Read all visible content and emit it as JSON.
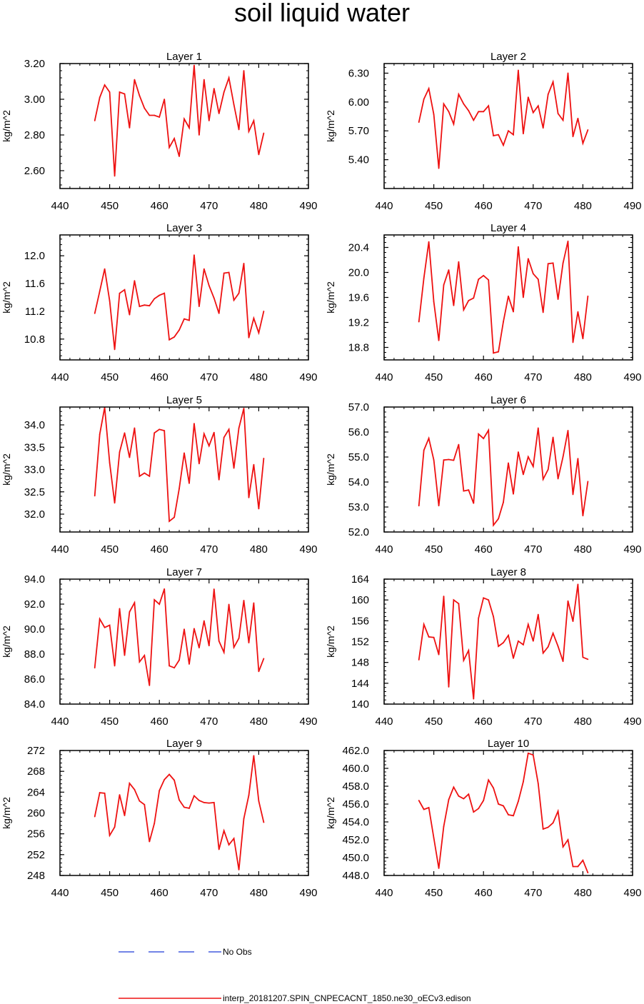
{
  "title": "soil liquid water",
  "chart_data": [
    {
      "type": "line",
      "title": "Layer 1",
      "ylabel": "kg/m^2",
      "xlim": [
        440,
        490
      ],
      "ylim": [
        2.5,
        3.2
      ],
      "xticks": [
        "440",
        "450",
        "460",
        "470",
        "480",
        "490"
      ],
      "yticks": [
        "2.60",
        "2.80",
        "3.00",
        "3.20"
      ],
      "x": [
        447,
        448,
        449,
        450,
        451,
        452,
        453,
        454,
        455,
        456,
        457,
        458,
        459,
        460,
        461,
        462,
        463,
        464,
        465,
        466,
        467,
        468,
        469,
        470,
        471,
        472,
        473,
        474,
        475,
        476,
        477,
        478,
        479,
        480,
        481
      ],
      "y": [
        2.88,
        3.01,
        3.08,
        3.04,
        2.57,
        3.04,
        3.03,
        2.84,
        3.11,
        3.02,
        2.95,
        2.91,
        2.91,
        2.9,
        3.0,
        2.73,
        2.78,
        2.68,
        2.89,
        2.84,
        3.19,
        2.8,
        3.11,
        2.88,
        3.06,
        2.92,
        3.04,
        3.12,
        2.97,
        2.83,
        3.16,
        2.82,
        2.88,
        2.69,
        2.81
      ]
    },
    {
      "type": "line",
      "title": "Layer 2",
      "ylabel": "kg/m^2",
      "xlim": [
        440,
        490
      ],
      "ylim": [
        5.1,
        6.4
      ],
      "xticks": [
        "440",
        "450",
        "460",
        "470",
        "480",
        "490"
      ],
      "yticks": [
        "5.40",
        "5.70",
        "6.00",
        "6.30"
      ],
      "x": [
        447,
        448,
        449,
        450,
        451,
        452,
        453,
        454,
        455,
        456,
        457,
        458,
        459,
        460,
        461,
        462,
        463,
        464,
        465,
        466,
        467,
        468,
        469,
        470,
        471,
        472,
        473,
        474,
        475,
        476,
        477,
        478,
        479,
        480,
        481
      ],
      "y": [
        5.79,
        6.03,
        6.14,
        5.87,
        5.31,
        5.98,
        5.9,
        5.77,
        6.08,
        5.98,
        5.91,
        5.81,
        5.9,
        5.9,
        5.96,
        5.65,
        5.66,
        5.55,
        5.7,
        5.66,
        6.33,
        5.67,
        6.05,
        5.89,
        5.96,
        5.73,
        6.08,
        6.21,
        5.88,
        5.81,
        6.3,
        5.64,
        5.83,
        5.57,
        5.71
      ]
    },
    {
      "type": "line",
      "title": "Layer 3",
      "ylabel": "kg/m^2",
      "xlim": [
        440,
        490
      ],
      "ylim": [
        10.5,
        12.3
      ],
      "xticks": [
        "440",
        "450",
        "460",
        "470",
        "480",
        "490"
      ],
      "yticks": [
        "10.8",
        "11.2",
        "11.6",
        "12.0"
      ],
      "x": [
        447,
        448,
        449,
        450,
        451,
        452,
        453,
        454,
        455,
        456,
        457,
        458,
        459,
        460,
        461,
        462,
        463,
        464,
        465,
        466,
        467,
        468,
        469,
        470,
        471,
        472,
        473,
        474,
        475,
        476,
        477,
        478,
        479,
        480,
        481
      ],
      "y": [
        11.17,
        11.49,
        11.81,
        11.35,
        10.65,
        11.46,
        11.51,
        11.15,
        11.64,
        11.27,
        11.29,
        11.28,
        11.38,
        11.43,
        11.46,
        10.79,
        10.83,
        10.93,
        11.09,
        11.07,
        12.01,
        11.27,
        11.81,
        11.57,
        11.39,
        11.17,
        11.75,
        11.76,
        11.36,
        11.46,
        11.89,
        10.82,
        11.1,
        10.89,
        11.2
      ]
    },
    {
      "type": "line",
      "title": "Layer 4",
      "ylabel": "kg/m^2",
      "xlim": [
        440,
        490
      ],
      "ylim": [
        18.6,
        20.6
      ],
      "xticks": [
        "440",
        "450",
        "460",
        "470",
        "480",
        "490"
      ],
      "yticks": [
        "18.8",
        "19.2",
        "19.6",
        "20.0",
        "20.4"
      ],
      "x": [
        447,
        448,
        449,
        450,
        451,
        452,
        453,
        454,
        455,
        456,
        457,
        458,
        459,
        460,
        461,
        462,
        463,
        464,
        465,
        466,
        467,
        468,
        469,
        470,
        471,
        472,
        473,
        474,
        475,
        476,
        477,
        478,
        479,
        480,
        481
      ],
      "y": [
        19.21,
        19.91,
        20.49,
        19.53,
        18.91,
        19.8,
        20.04,
        19.47,
        20.17,
        19.4,
        19.55,
        19.59,
        19.89,
        19.95,
        19.88,
        18.71,
        18.73,
        19.21,
        19.62,
        19.37,
        20.41,
        19.6,
        20.22,
        19.98,
        19.89,
        19.36,
        20.14,
        20.15,
        19.57,
        20.15,
        20.5,
        18.88,
        19.37,
        18.94,
        19.62
      ]
    },
    {
      "type": "line",
      "title": "Layer 5",
      "ylabel": "kg/m^2",
      "xlim": [
        440,
        490
      ],
      "ylim": [
        31.6,
        34.4
      ],
      "xticks": [
        "440",
        "450",
        "460",
        "470",
        "480",
        "490"
      ],
      "yticks": [
        "32.0",
        "32.5",
        "33.0",
        "33.5",
        "34.0"
      ],
      "x": [
        447,
        448,
        449,
        450,
        451,
        452,
        453,
        454,
        455,
        456,
        457,
        458,
        459,
        460,
        461,
        462,
        463,
        464,
        465,
        466,
        467,
        468,
        469,
        470,
        471,
        472,
        473,
        474,
        475,
        476,
        477,
        478,
        479,
        480,
        481
      ],
      "y": [
        32.41,
        33.79,
        34.39,
        33.15,
        32.25,
        33.39,
        33.82,
        33.27,
        33.93,
        32.85,
        32.92,
        32.85,
        33.82,
        33.9,
        33.87,
        31.84,
        31.93,
        32.57,
        33.37,
        32.69,
        34.03,
        33.13,
        33.8,
        33.53,
        33.83,
        32.77,
        33.72,
        33.9,
        33.03,
        33.93,
        34.37,
        32.37,
        33.11,
        32.12,
        33.25
      ]
    },
    {
      "type": "line",
      "title": "Layer 6",
      "ylabel": "kg/m^2",
      "xlim": [
        440,
        490
      ],
      "ylim": [
        52.0,
        57.0
      ],
      "xticks": [
        "440",
        "450",
        "460",
        "470",
        "480",
        "490"
      ],
      "yticks": [
        "52.0",
        "53.0",
        "54.0",
        "55.0",
        "56.0",
        "57.0"
      ],
      "x": [
        447,
        448,
        449,
        450,
        451,
        452,
        453,
        454,
        455,
        456,
        457,
        458,
        459,
        460,
        461,
        462,
        463,
        464,
        465,
        466,
        467,
        468,
        469,
        470,
        471,
        472,
        473,
        474,
        475,
        476,
        477,
        478,
        479,
        480,
        481
      ],
      "y": [
        53.05,
        55.27,
        55.75,
        54.88,
        53.05,
        54.88,
        54.9,
        54.87,
        55.5,
        53.64,
        53.68,
        53.15,
        55.92,
        55.74,
        56.07,
        52.27,
        52.53,
        53.19,
        54.76,
        53.52,
        55.2,
        54.3,
        55.01,
        54.62,
        56.16,
        54.11,
        54.5,
        55.79,
        54.13,
        55.01,
        56.06,
        53.5,
        54.94,
        52.65,
        54.02
      ]
    },
    {
      "type": "line",
      "title": "Layer 7",
      "ylabel": "kg/m^2",
      "xlim": [
        440,
        490
      ],
      "ylim": [
        84.0,
        94.0
      ],
      "xticks": [
        "440",
        "450",
        "460",
        "470",
        "480",
        "490"
      ],
      "yticks": [
        "84.0",
        "86.0",
        "88.0",
        "90.0",
        "92.0",
        "94.0"
      ],
      "x": [
        447,
        448,
        449,
        450,
        451,
        452,
        453,
        454,
        455,
        456,
        457,
        458,
        459,
        460,
        461,
        462,
        463,
        464,
        465,
        466,
        467,
        468,
        469,
        470,
        471,
        472,
        473,
        474,
        475,
        476,
        477,
        478,
        479,
        480,
        481
      ],
      "y": [
        86.9,
        90.81,
        90.13,
        90.31,
        87.06,
        91.64,
        87.9,
        91.38,
        92.11,
        87.38,
        87.89,
        85.49,
        92.35,
        91.99,
        93.21,
        87.06,
        86.9,
        87.52,
        89.99,
        87.2,
        90.04,
        88.51,
        90.66,
        88.67,
        93.2,
        89.04,
        88.14,
        91.98,
        88.54,
        89.27,
        92.29,
        88.91,
        92.09,
        86.61,
        87.64
      ]
    },
    {
      "type": "line",
      "title": "Layer 8",
      "ylabel": "kg/m^2",
      "xlim": [
        440,
        490
      ],
      "ylim": [
        140,
        164
      ],
      "xticks": [
        "440",
        "450",
        "460",
        "470",
        "480",
        "490"
      ],
      "yticks": [
        "140",
        "144",
        "148",
        "152",
        "156",
        "160",
        "164"
      ],
      "x": [
        447,
        448,
        449,
        450,
        451,
        452,
        453,
        454,
        455,
        456,
        457,
        458,
        459,
        460,
        461,
        462,
        463,
        464,
        465,
        466,
        467,
        468,
        469,
        470,
        471,
        472,
        473,
        474,
        475,
        476,
        477,
        478,
        479,
        480,
        481
      ],
      "y": [
        148.5,
        155.3,
        152.9,
        152.8,
        149.5,
        160.7,
        143.3,
        160.0,
        159.3,
        148.4,
        150.3,
        141.0,
        156.5,
        160.4,
        160.0,
        156.8,
        151.1,
        151.8,
        153.2,
        148.8,
        152.1,
        151.4,
        155.3,
        152.1,
        157.2,
        149.8,
        151.0,
        153.6,
        151.1,
        148.2,
        159.8,
        155.9,
        163.0,
        149.0,
        148.6
      ]
    },
    {
      "type": "line",
      "title": "Layer 9",
      "ylabel": "kg/m^2",
      "xlim": [
        440,
        490
      ],
      "ylim": [
        248,
        272
      ],
      "xticks": [
        "440",
        "450",
        "460",
        "470",
        "480",
        "490"
      ],
      "yticks": [
        "248",
        "252",
        "256",
        "260",
        "264",
        "268",
        "272"
      ],
      "x": [
        447,
        448,
        449,
        450,
        451,
        452,
        453,
        454,
        455,
        456,
        457,
        458,
        459,
        460,
        461,
        462,
        463,
        464,
        465,
        466,
        467,
        468,
        469,
        470,
        471,
        472,
        473,
        474,
        475,
        476,
        477,
        478,
        479,
        480,
        481
      ],
      "y": [
        259.3,
        263.9,
        263.8,
        255.7,
        257.3,
        263.5,
        259.5,
        265.7,
        264.5,
        262.3,
        261.6,
        254.5,
        258.0,
        264.3,
        266.4,
        267.4,
        266.3,
        262.5,
        261.1,
        260.9,
        263.3,
        262.4,
        262.0,
        261.9,
        262.0,
        253.0,
        256.6,
        253.9,
        255.1,
        249.1,
        258.9,
        263.4,
        271.0,
        262.3,
        258.2
      ]
    },
    {
      "type": "line",
      "title": "Layer 10",
      "ylabel": "kg/m^2",
      "xlim": [
        440,
        490
      ],
      "ylim": [
        448.0,
        462.0
      ],
      "xticks": [
        "440",
        "450",
        "460",
        "470",
        "480",
        "490"
      ],
      "yticks": [
        "448.0",
        "450.0",
        "452.0",
        "454.0",
        "456.0",
        "458.0",
        "460.0",
        "462.0"
      ],
      "x": [
        447,
        448,
        449,
        450,
        451,
        452,
        453,
        454,
        455,
        456,
        457,
        458,
        459,
        460,
        461,
        462,
        463,
        464,
        465,
        466,
        467,
        468,
        469,
        470,
        471,
        472,
        473,
        474,
        475,
        476,
        477,
        478,
        479,
        480,
        481
      ],
      "y": [
        456.4,
        455.4,
        455.6,
        452.2,
        448.8,
        453.5,
        456.5,
        457.9,
        456.9,
        456.6,
        457.1,
        455.1,
        455.5,
        456.4,
        458.7,
        457.8,
        456.0,
        455.8,
        454.8,
        454.7,
        456.3,
        458.5,
        461.7,
        461.5,
        458.3,
        453.2,
        453.4,
        453.9,
        455.2,
        451.2,
        452.0,
        449.0,
        449.0,
        449.7,
        448.3
      ]
    }
  ],
  "legend": [
    {
      "label": "No Obs",
      "color": "#1f3bd6",
      "style": "dashed"
    },
    {
      "label": "interp_20181207.SPIN_CNPECACNT_1850.ne30_oECv3.edison",
      "color": "#ee1111",
      "style": "solid"
    }
  ],
  "colors": {
    "series": "#ee1111",
    "axis": "#000000"
  }
}
